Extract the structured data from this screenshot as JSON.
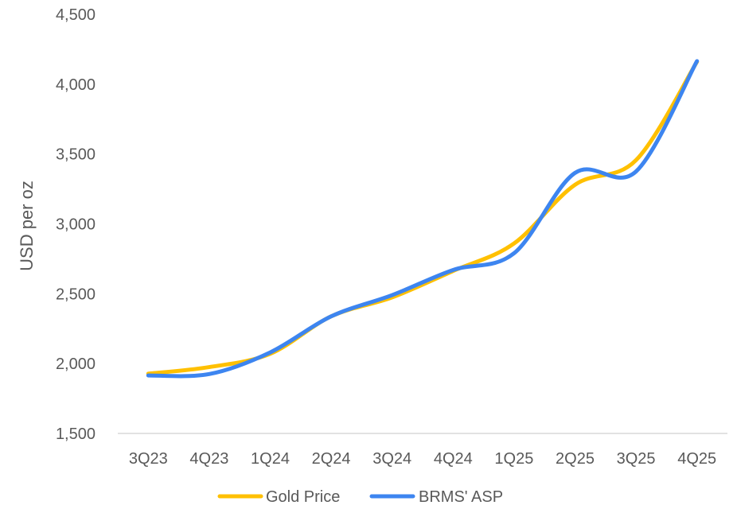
{
  "chart_data": {
    "type": "line",
    "title": "",
    "xlabel": "",
    "ylabel": "USD per oz",
    "categories": [
      "3Q23",
      "4Q23",
      "1Q24",
      "2Q24",
      "3Q24",
      "4Q24",
      "1Q25",
      "2Q25",
      "3Q25",
      "4Q25"
    ],
    "ylim": [
      1500,
      4500
    ],
    "yticks": [
      1500,
      2000,
      2500,
      3000,
      3500,
      4000,
      4500
    ],
    "ytick_labels": [
      "1,500",
      "2,000",
      "2,500",
      "3,000",
      "3,500",
      "4,000",
      "4,500"
    ],
    "grid": false,
    "legend_position": "bottom",
    "series": [
      {
        "name": "Gold Price",
        "color": "#FFC000",
        "values": [
          1928,
          1975,
          2070,
          2338,
          2474,
          2663,
          2860,
          3280,
          3456,
          4160
        ]
      },
      {
        "name": "BRMS' ASP",
        "color": "#3D85F0",
        "values": [
          1915,
          1925,
          2080,
          2338,
          2490,
          2670,
          2790,
          3365,
          3375,
          4165
        ]
      }
    ]
  }
}
